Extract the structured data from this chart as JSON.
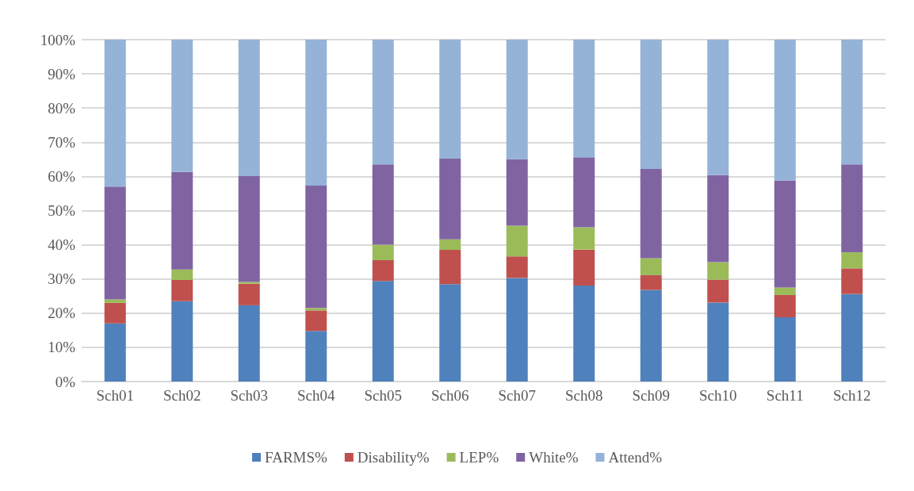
{
  "chart_data": {
    "type": "bar",
    "stacked": true,
    "categories": [
      "Sch01",
      "Sch02",
      "Sch03",
      "Sch04",
      "Sch05",
      "Sch06",
      "Sch07",
      "Sch08",
      "Sch09",
      "Sch10",
      "Sch11",
      "Sch12"
    ],
    "series": [
      {
        "name": "FARMS%",
        "color": "#4f81bd",
        "values": [
          17,
          23.5,
          22.3,
          14.8,
          29.4,
          28.5,
          30.3,
          28.1,
          26.8,
          23.1,
          18.8,
          25.6
        ]
      },
      {
        "name": "Disability%",
        "color": "#c0504d",
        "values": [
          6,
          6.2,
          6.3,
          6,
          6.1,
          10,
          6.3,
          10.5,
          4.3,
          6.7,
          6.5,
          7.5
        ]
      },
      {
        "name": "LEP%",
        "color": "#9bbb59",
        "values": [
          1,
          3.1,
          0.5,
          0.7,
          4.5,
          3.1,
          9,
          6.5,
          5,
          5.1,
          2.2,
          4.7
        ]
      },
      {
        "name": "White%",
        "color": "#8064a2",
        "values": [
          33,
          28.5,
          31,
          35.8,
          23.5,
          23.6,
          19.4,
          20.5,
          26.1,
          25.5,
          31.3,
          25.7
        ]
      },
      {
        "name": "Attend%",
        "color": "#95b3d7",
        "values": [
          43,
          38.7,
          39.9,
          42.7,
          36.5,
          34.8,
          35,
          34.4,
          37.8,
          39.6,
          41.2,
          36.5
        ]
      }
    ],
    "ylim": [
      0,
      100
    ],
    "yticks": [
      {
        "value": 0,
        "label": "0%"
      },
      {
        "value": 10,
        "label": "10%"
      },
      {
        "value": 20,
        "label": "20%"
      },
      {
        "value": 30,
        "label": "30%"
      },
      {
        "value": 40,
        "label": "40%"
      },
      {
        "value": 50,
        "label": "50%"
      },
      {
        "value": 60,
        "label": "60%"
      },
      {
        "value": 70,
        "label": "70%"
      },
      {
        "value": 80,
        "label": "80%"
      },
      {
        "value": 90,
        "label": "90%"
      },
      {
        "value": 100,
        "label": "100%"
      }
    ],
    "grid": "y",
    "legend": "bottom"
  }
}
